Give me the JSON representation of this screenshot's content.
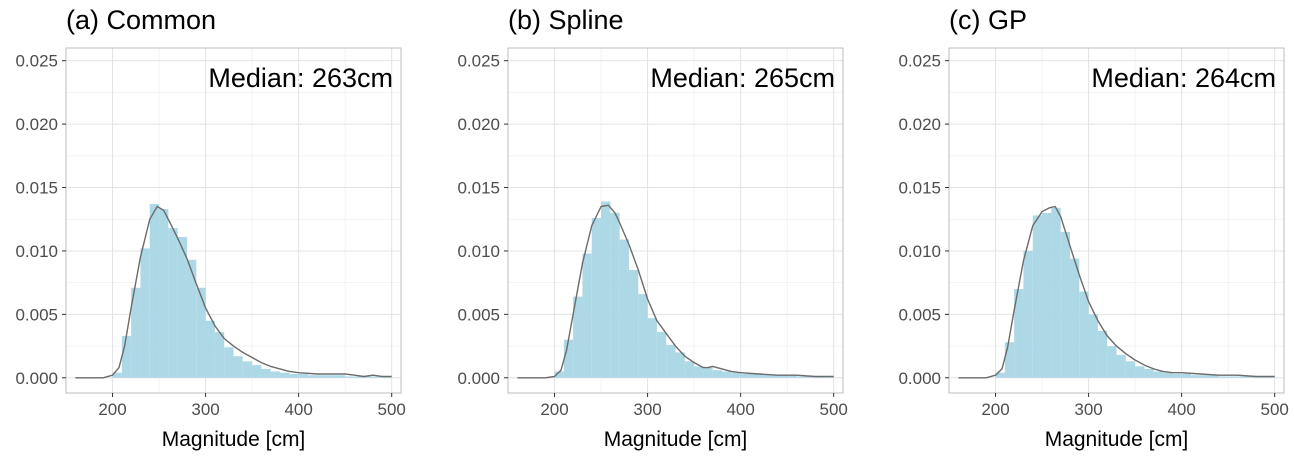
{
  "chart_data": [
    {
      "type": "histogram",
      "title": "(a) Common",
      "annotation": "Median: 263cm",
      "xlabel": "Magnitude [cm]",
      "ylabel": "",
      "xlim": [
        150,
        510
      ],
      "ylim": [
        -0.0012,
        0.026
      ],
      "xticks": [
        "200",
        "300",
        "400",
        "500"
      ],
      "yticks": [
        "0.000",
        "0.005",
        "0.010",
        "0.015",
        "0.020",
        "0.025"
      ],
      "grid": true,
      "bin_width": 10,
      "bins": [
        205,
        215,
        225,
        235,
        245,
        255,
        265,
        275,
        285,
        295,
        305,
        315,
        325,
        335,
        345,
        355,
        365,
        375,
        385,
        395,
        405,
        415,
        425,
        435,
        445,
        455,
        465,
        475,
        485,
        495
      ],
      "values": [
        0.0004,
        0.0033,
        0.0071,
        0.0102,
        0.0137,
        0.0133,
        0.0118,
        0.0111,
        0.0093,
        0.0071,
        0.0045,
        0.0036,
        0.0024,
        0.0017,
        0.0013,
        0.001,
        0.0007,
        0.0005,
        0.0004,
        0.0003,
        0.0003,
        0.0002,
        0.0002,
        0.0002,
        0.0002,
        0.0001,
        0.0001,
        0.0001,
        0.0001,
        0.0001
      ],
      "density": {
        "x": [
          160,
          190,
          200,
          207,
          213,
          220,
          230,
          240,
          248,
          255,
          262,
          270,
          280,
          290,
          300,
          310,
          320,
          330,
          340,
          350,
          360,
          370,
          380,
          390,
          400,
          420,
          440,
          450,
          460,
          470,
          480,
          490,
          500
        ],
        "y": [
          0.0,
          0.0,
          0.0002,
          0.0008,
          0.0025,
          0.0055,
          0.0095,
          0.0125,
          0.0135,
          0.0132,
          0.0122,
          0.011,
          0.0094,
          0.0074,
          0.0055,
          0.0041,
          0.0031,
          0.0025,
          0.002,
          0.0016,
          0.0012,
          0.0009,
          0.0007,
          0.0005,
          0.0004,
          0.0003,
          0.0003,
          0.0003,
          0.0002,
          0.0001,
          0.0002,
          0.0001,
          0.0001
        ]
      },
      "colors": {
        "bars": "#add8e6",
        "density": "#6b6b6b"
      }
    },
    {
      "type": "histogram",
      "title": "(b) Spline",
      "annotation": "Median: 265cm",
      "xlabel": "Magnitude [cm]",
      "ylabel": "",
      "xlim": [
        150,
        510
      ],
      "ylim": [
        -0.0012,
        0.026
      ],
      "xticks": [
        "200",
        "300",
        "400",
        "500"
      ],
      "yticks": [
        "0.000",
        "0.005",
        "0.010",
        "0.015",
        "0.020",
        "0.025"
      ],
      "grid": true,
      "bin_width": 10,
      "bins": [
        205,
        215,
        225,
        235,
        245,
        255,
        265,
        275,
        285,
        295,
        305,
        315,
        325,
        335,
        345,
        355,
        365,
        375,
        385,
        395,
        405,
        415,
        425,
        435,
        445,
        455,
        465,
        475,
        485,
        495
      ],
      "values": [
        0.0005,
        0.003,
        0.0064,
        0.0098,
        0.0126,
        0.0139,
        0.013,
        0.0109,
        0.0085,
        0.0066,
        0.0047,
        0.0036,
        0.0026,
        0.002,
        0.0013,
        0.0009,
        0.0008,
        0.0006,
        0.0005,
        0.0004,
        0.0003,
        0.0003,
        0.0003,
        0.0002,
        0.0002,
        0.0002,
        0.0001,
        0.0001,
        0.0001,
        0.0001
      ],
      "density": {
        "x": [
          160,
          190,
          200,
          207,
          213,
          220,
          230,
          240,
          250,
          258,
          265,
          270,
          280,
          290,
          300,
          310,
          320,
          330,
          340,
          350,
          360,
          365,
          370,
          380,
          390,
          400,
          420,
          440,
          460,
          480,
          500
        ],
        "y": [
          0.0,
          0.0,
          0.0001,
          0.0006,
          0.0022,
          0.005,
          0.009,
          0.012,
          0.0135,
          0.0136,
          0.013,
          0.0122,
          0.0105,
          0.0085,
          0.0062,
          0.0045,
          0.0035,
          0.0025,
          0.0017,
          0.0012,
          0.0008,
          0.0008,
          0.0009,
          0.0007,
          0.0005,
          0.0004,
          0.0003,
          0.0002,
          0.0002,
          0.0001,
          0.0001
        ]
      },
      "colors": {
        "bars": "#add8e6",
        "density": "#6b6b6b"
      }
    },
    {
      "type": "histogram",
      "title": "(c) GP",
      "annotation": "Median: 264cm",
      "xlabel": "Magnitude [cm]",
      "ylabel": "",
      "xlim": [
        150,
        510
      ],
      "ylim": [
        -0.0012,
        0.026
      ],
      "xticks": [
        "200",
        "300",
        "400",
        "500"
      ],
      "yticks": [
        "0.000",
        "0.005",
        "0.010",
        "0.015",
        "0.020",
        "0.025"
      ],
      "grid": true,
      "bin_width": 10,
      "bins": [
        205,
        215,
        225,
        235,
        245,
        255,
        265,
        275,
        285,
        295,
        305,
        315,
        325,
        335,
        345,
        355,
        365,
        375,
        385,
        395,
        405,
        415,
        425,
        435,
        445,
        455,
        465,
        475,
        485,
        495
      ],
      "values": [
        0.0004,
        0.0028,
        0.007,
        0.01,
        0.0128,
        0.013,
        0.0134,
        0.0115,
        0.0094,
        0.0068,
        0.005,
        0.0037,
        0.0025,
        0.0018,
        0.0013,
        0.0009,
        0.0007,
        0.0005,
        0.0004,
        0.0003,
        0.0003,
        0.0002,
        0.0002,
        0.0002,
        0.0001,
        0.0001,
        0.0001,
        0.0001,
        0.0001,
        0.0001
      ],
      "density": {
        "x": [
          160,
          190,
          200,
          207,
          213,
          220,
          230,
          240,
          250,
          258,
          264,
          270,
          280,
          290,
          300,
          310,
          320,
          330,
          340,
          350,
          360,
          370,
          380,
          390,
          400,
          420,
          440,
          460,
          480,
          500
        ],
        "y": [
          0.0,
          0.0,
          0.0002,
          0.0007,
          0.0024,
          0.0053,
          0.0092,
          0.012,
          0.0131,
          0.0134,
          0.0135,
          0.0127,
          0.0104,
          0.0081,
          0.006,
          0.0045,
          0.0033,
          0.0025,
          0.0019,
          0.0014,
          0.001,
          0.0007,
          0.0005,
          0.0004,
          0.0004,
          0.0003,
          0.0002,
          0.0002,
          0.0001,
          0.0001
        ]
      },
      "colors": {
        "bars": "#add8e6",
        "density": "#6b6b6b"
      }
    }
  ]
}
